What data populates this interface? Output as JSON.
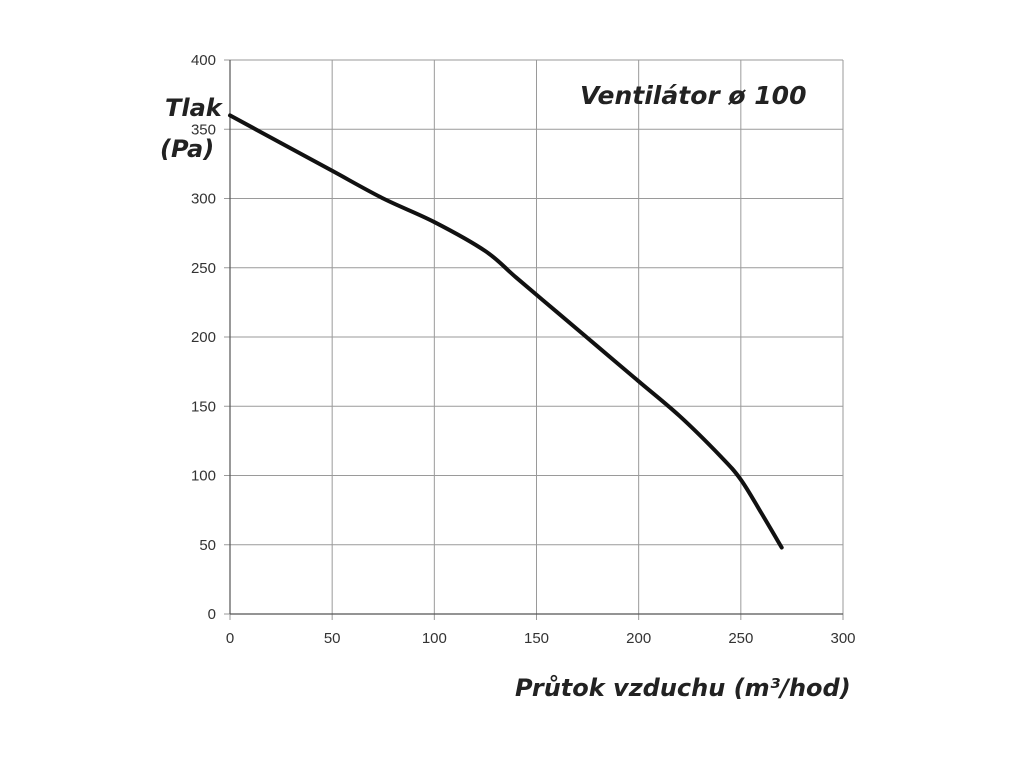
{
  "chart_data": {
    "type": "line",
    "title": "Ventilátor ø 100",
    "ylabel_line1": "Tlak",
    "ylabel_line2": "(Pa)",
    "xlabel": "Průtok vzduchu (m³/hod)",
    "xlim": [
      0,
      300
    ],
    "ylim": [
      0,
      400
    ],
    "xticks": [
      0,
      50,
      100,
      150,
      200,
      250,
      300
    ],
    "yticks": [
      0,
      50,
      100,
      150,
      200,
      250,
      300,
      350,
      400
    ],
    "grid": true,
    "series": [
      {
        "x": [
          0,
          25,
          50,
          75,
          100,
          125,
          140,
          160,
          180,
          200,
          220,
          240,
          250,
          260,
          270
        ],
        "y": [
          360,
          340,
          320,
          300,
          283,
          262,
          243,
          218,
          193,
          168,
          143,
          114,
          97,
          73,
          48
        ]
      }
    ]
  }
}
